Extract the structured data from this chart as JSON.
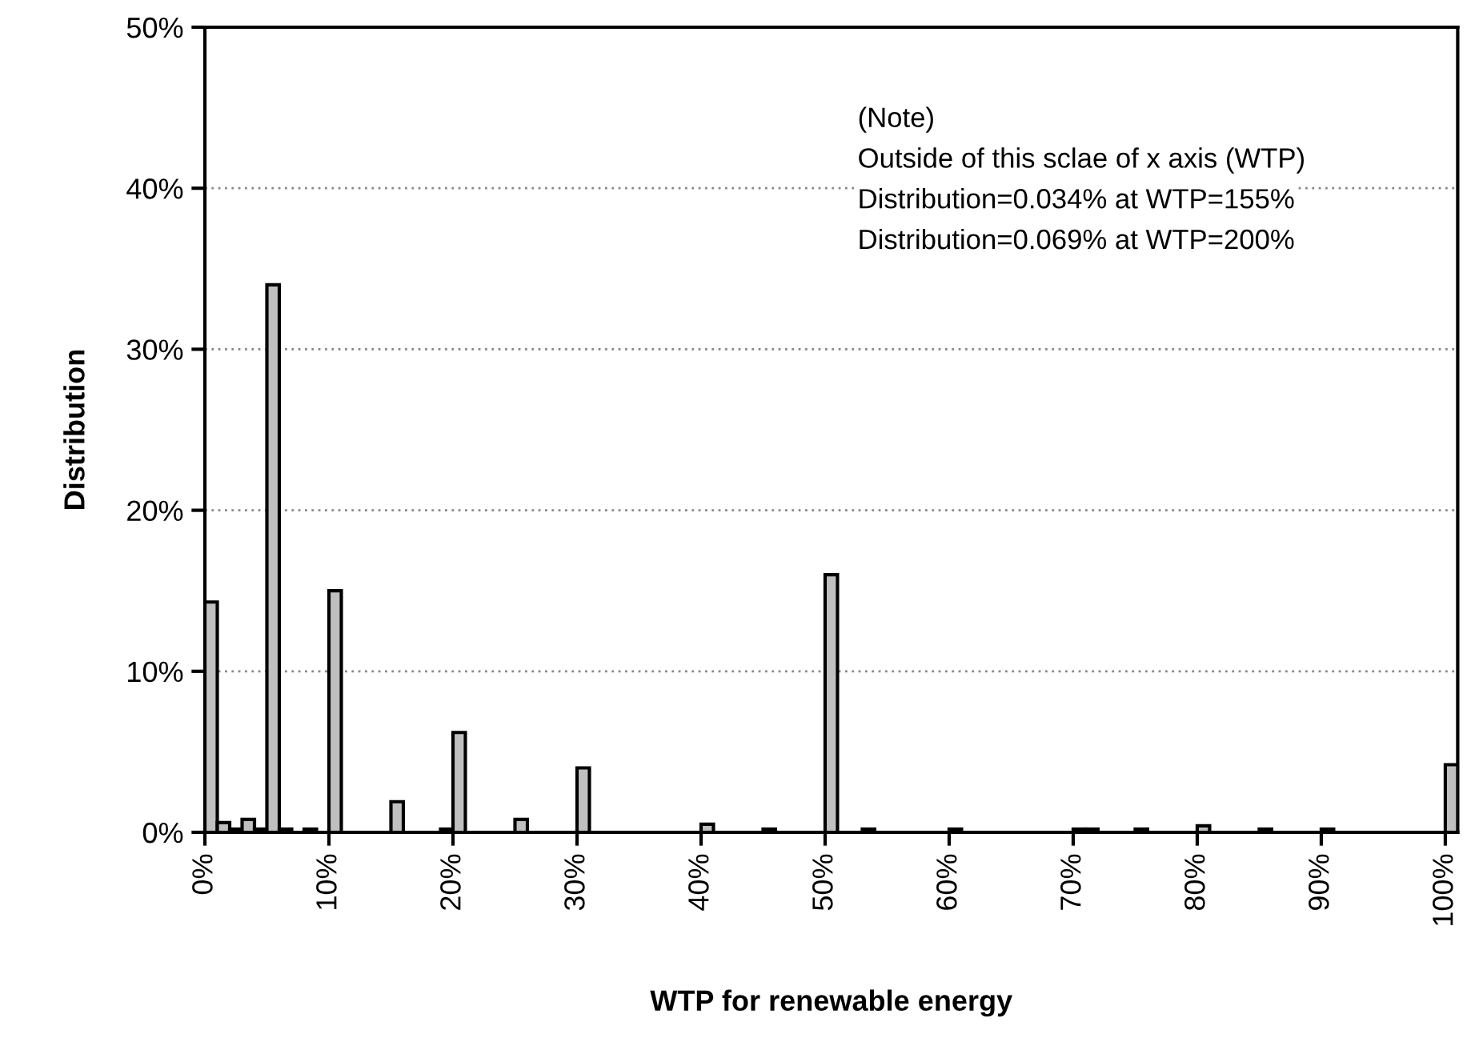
{
  "chart_data": {
    "type": "histogram",
    "xlabel": "WTP for renewable energy",
    "ylabel": "Distribution",
    "annotations": [
      "(Note)",
      "Outside of this sclae of x axis (WTP)",
      "Distribution=0.034% at WTP=155%",
      "Distribution=0.069% at WTP=200%"
    ],
    "bins": [
      0,
      1,
      2,
      3,
      4,
      5,
      6,
      7,
      8,
      9,
      10,
      11,
      12,
      13,
      14,
      15,
      16,
      17,
      18,
      19,
      20,
      21,
      22,
      23,
      24,
      25,
      26,
      27,
      28,
      29,
      30,
      31,
      32,
      33,
      34,
      35,
      36,
      37,
      38,
      39,
      40,
      41,
      42,
      43,
      44,
      45,
      46,
      47,
      48,
      49,
      50,
      51,
      52,
      53,
      54,
      55,
      56,
      57,
      58,
      59,
      60,
      61,
      62,
      63,
      64,
      65,
      66,
      67,
      68,
      69,
      70,
      71,
      72,
      73,
      74,
      75,
      76,
      77,
      78,
      79,
      80,
      81,
      82,
      83,
      84,
      85,
      86,
      87,
      88,
      89,
      90,
      91,
      92,
      93,
      94,
      95,
      96,
      97,
      98,
      99,
      100,
      101
    ],
    "values": [
      14.3,
      0.6,
      0.2,
      0.8,
      0.2,
      34.0,
      0.2,
      0,
      0.2,
      0,
      15.0,
      0,
      0,
      0,
      0,
      1.9,
      0,
      0,
      0,
      0.2,
      6.2,
      0,
      0,
      0,
      0,
      0.8,
      0,
      0,
      0,
      0,
      4.0,
      0,
      0,
      0,
      0,
      0,
      0,
      0,
      0,
      0,
      0.5,
      0,
      0,
      0,
      0,
      0.2,
      0,
      0,
      0,
      0,
      16.0,
      0,
      0,
      0.2,
      0,
      0,
      0,
      0,
      0,
      0,
      0.2,
      0,
      0,
      0,
      0,
      0,
      0,
      0,
      0,
      0,
      0.2,
      0.2,
      0,
      0,
      0,
      0.2,
      0,
      0,
      0,
      0,
      0.4,
      0,
      0,
      0,
      0,
      0.2,
      0,
      0,
      0,
      0,
      0.2,
      0,
      0,
      0,
      0,
      0,
      0,
      0,
      0,
      0,
      4.2
    ],
    "color": "#c0c0c0",
    "xlim": [
      0,
      101
    ],
    "xticks": [
      {
        "value": 0,
        "label": "0%"
      },
      {
        "value": 10,
        "label": "10%"
      },
      {
        "value": 20,
        "label": "20%"
      },
      {
        "value": 30,
        "label": "30%"
      },
      {
        "value": 40,
        "label": "40%"
      },
      {
        "value": 50,
        "label": "50%"
      },
      {
        "value": 60,
        "label": "60%"
      },
      {
        "value": 70,
        "label": "70%"
      },
      {
        "value": 80,
        "label": "80%"
      },
      {
        "value": 90,
        "label": "90%"
      },
      {
        "value": 100,
        "label": "100%"
      }
    ],
    "ylim": [
      0,
      50
    ],
    "yticks": [
      {
        "value": 0,
        "label": "0%"
      },
      {
        "value": 10,
        "label": "10%"
      },
      {
        "value": 20,
        "label": "20%"
      },
      {
        "value": 30,
        "label": "30%"
      },
      {
        "value": 40,
        "label": "40%"
      },
      {
        "value": 50,
        "label": "50%"
      }
    ],
    "grid": "y",
    "legend": false
  }
}
